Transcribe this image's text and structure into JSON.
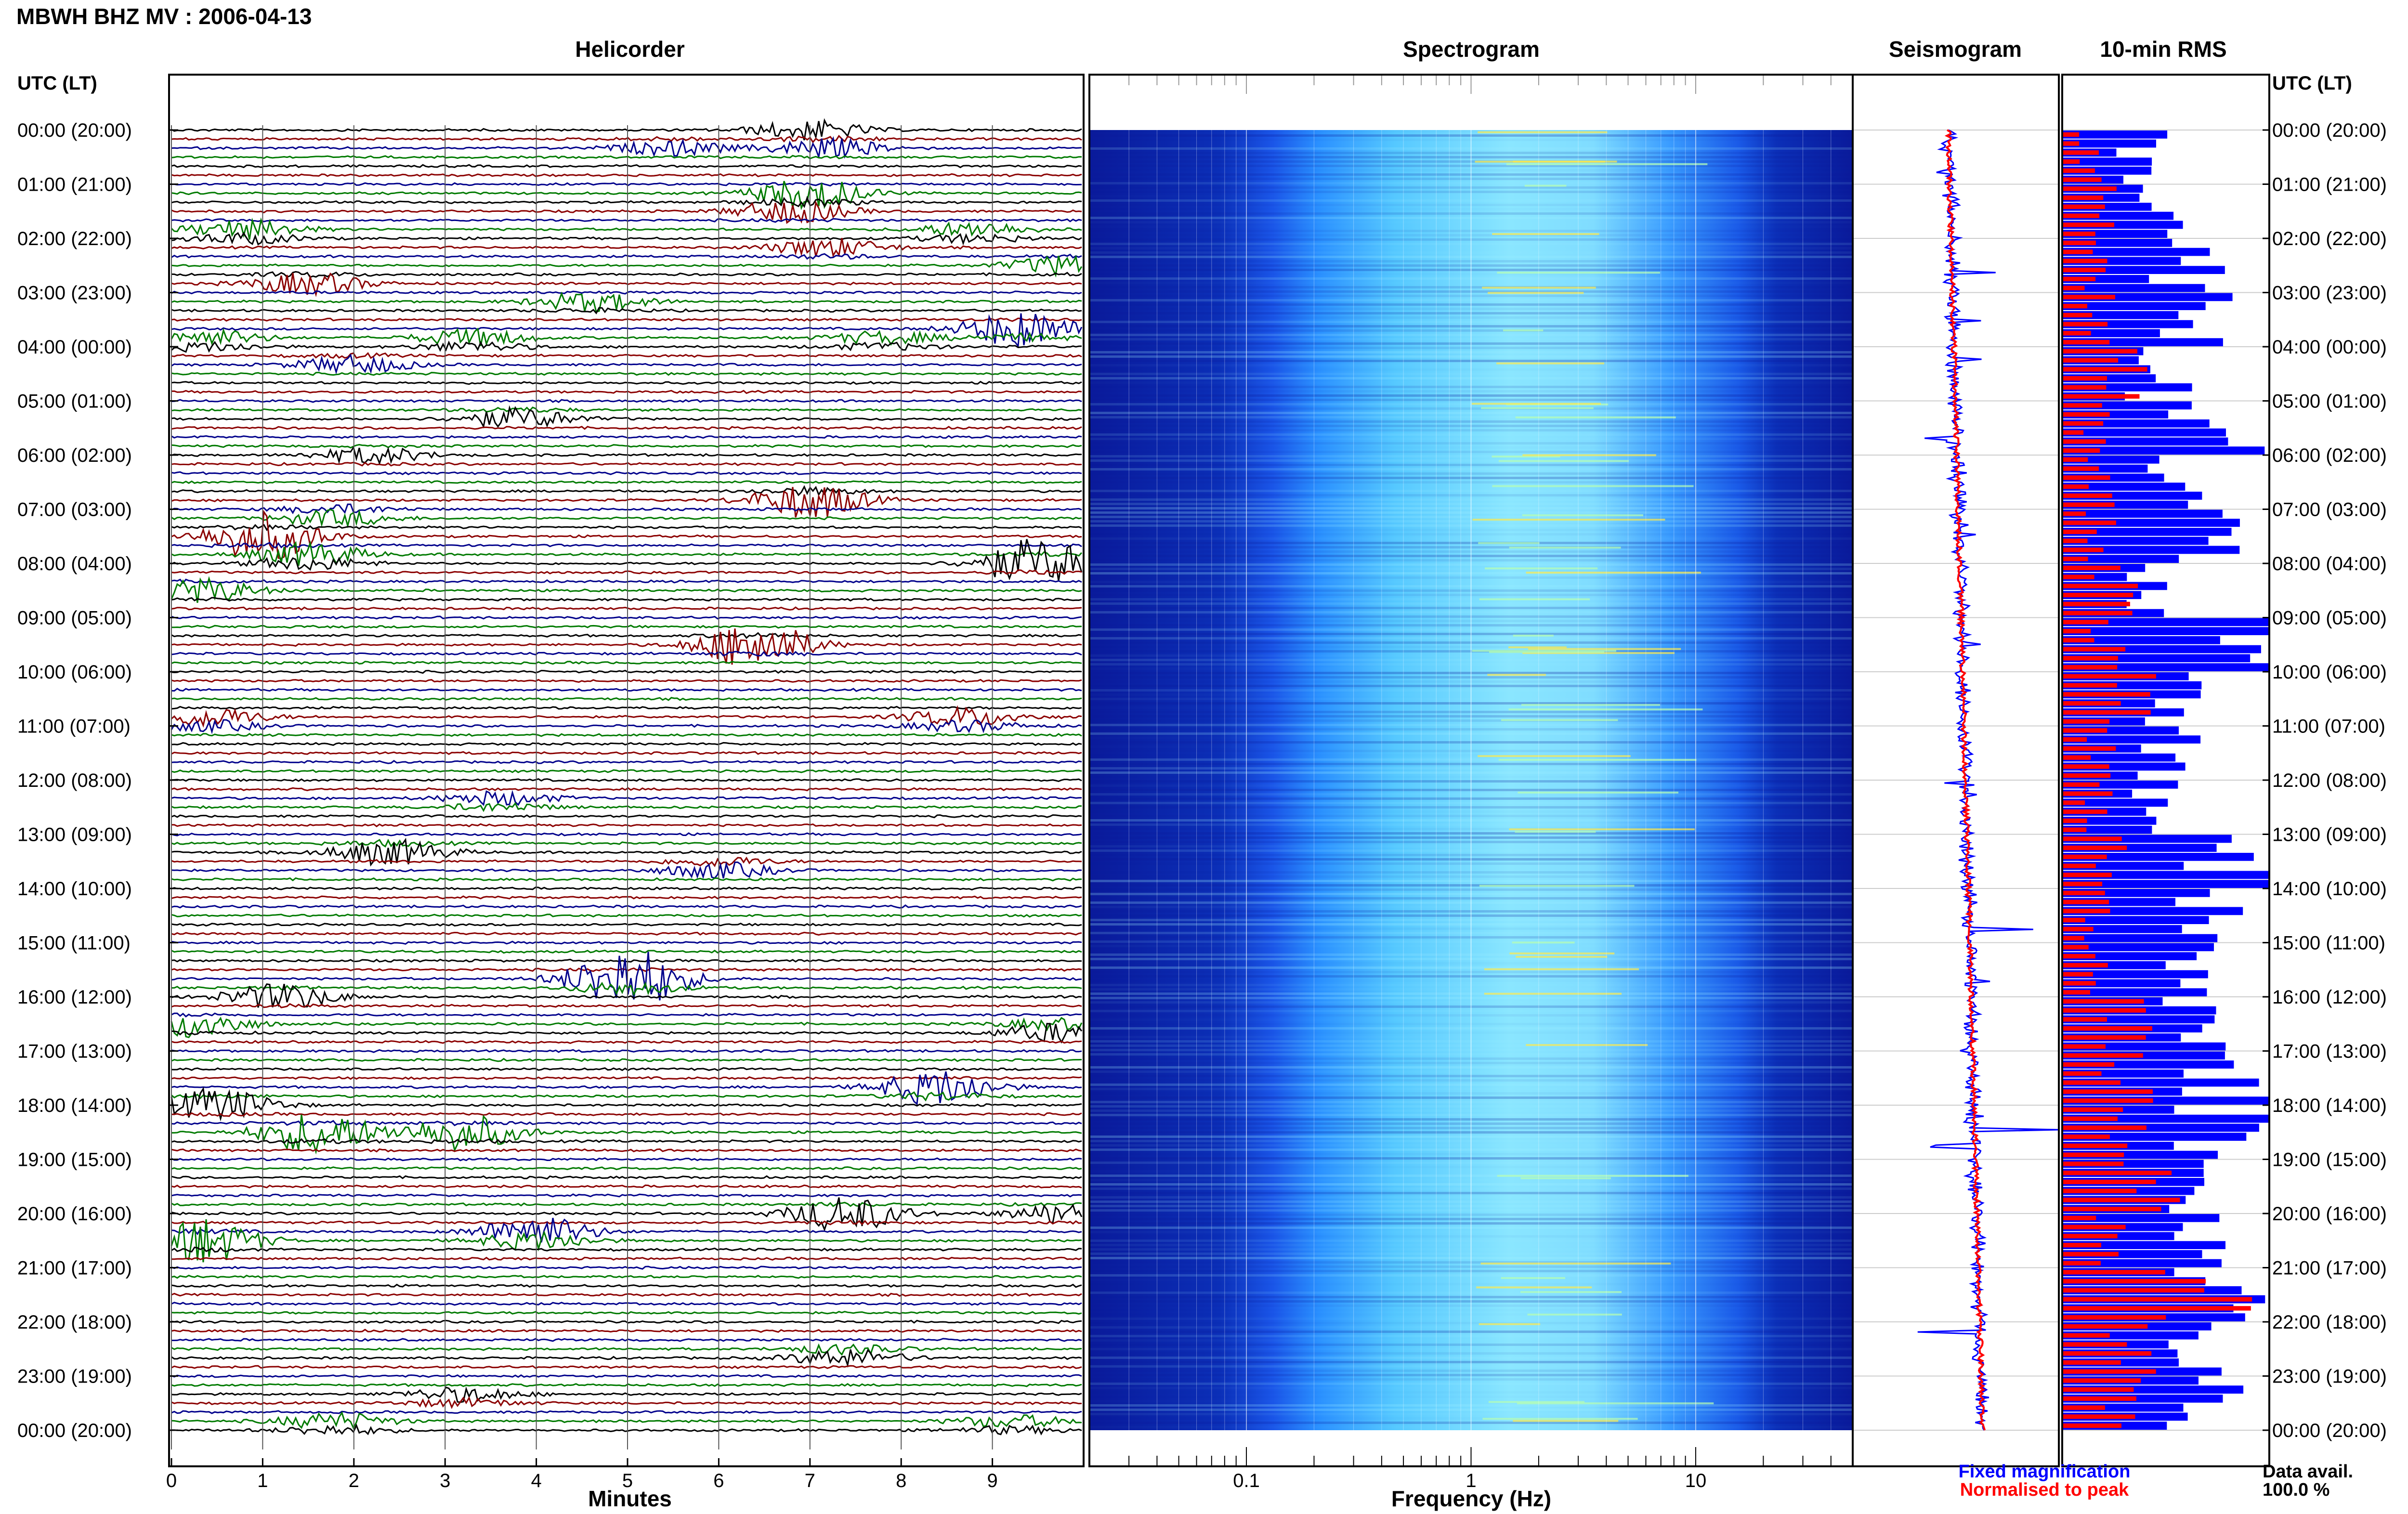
{
  "header": {
    "title": "MBWH BHZ MV : 2006-04-13"
  },
  "panels": {
    "helicorder": "Helicorder",
    "spectrogram": "Spectrogram",
    "seismogram": "Seismogram",
    "rms": "10-min RMS"
  },
  "axis_headers": {
    "left": "UTC (LT)",
    "right": "UTC (LT)"
  },
  "legend": {
    "fixed": "Fixed magnification",
    "normalised": "Normalised to peak",
    "fixed_color": "#0000ff",
    "normalised_color": "#ff0000"
  },
  "data_availability": {
    "label": "Data avail.",
    "value": "100.0 %"
  },
  "colors": {
    "trace_cycle": [
      "#000000",
      "#8b0000",
      "#00008b",
      "#007a00"
    ],
    "rms_fixed": "#0000ff",
    "rms_normalised": "#ff0000",
    "spectrogram_low": "#0a1a9a",
    "spectrogram_mid": "#1e78ff",
    "spectrogram_high": "#7fe0ff"
  },
  "chart_data": [
    {
      "type": "line",
      "name": "helicorder",
      "title": "Helicorder",
      "xlabel": "Minutes",
      "x_ticks": [
        "0",
        "1",
        "2",
        "3",
        "4",
        "5",
        "6",
        "7",
        "8",
        "9"
      ],
      "xlim": [
        0,
        10
      ],
      "y_tick_labels": [
        "00:00 (20:00)",
        "01:00 (21:00)",
        "02:00 (22:00)",
        "03:00 (23:00)",
        "04:00 (00:00)",
        "05:00 (01:00)",
        "06:00 (02:00)",
        "07:00 (03:00)",
        "08:00 (04:00)",
        "09:00 (05:00)",
        "10:00 (06:00)",
        "11:00 (07:00)",
        "12:00 (08:00)",
        "13:00 (09:00)",
        "14:00 (10:00)",
        "15:00 (11:00)",
        "16:00 (12:00)",
        "17:00 (13:00)",
        "18:00 (14:00)",
        "19:00 (15:00)",
        "20:00 (16:00)",
        "21:00 (17:00)",
        "22:00 (18:00)",
        "23:00 (19:00)",
        "00:00 (20:00)"
      ],
      "rows_per_hour": 6,
      "events": [
        {
          "hour": 0.0,
          "minute": 7.0,
          "amp": 1.2
        },
        {
          "hour": 0.3,
          "minute": 5.5,
          "amp": 1.0
        },
        {
          "hour": 0.3,
          "minute": 7.2,
          "amp": 1.3
        },
        {
          "hour": 1.2,
          "minute": 7.0,
          "amp": 2.2
        },
        {
          "hour": 1.5,
          "minute": 6.8,
          "amp": 1.4
        },
        {
          "hour": 1.9,
          "minute": 0.8,
          "amp": 1.8
        },
        {
          "hour": 1.9,
          "minute": 8.8,
          "amp": 1.4
        },
        {
          "hour": 2.2,
          "minute": 7.2,
          "amp": 1.3
        },
        {
          "hour": 2.5,
          "minute": 9.8,
          "amp": 1.2
        },
        {
          "hour": 2.8,
          "minute": 1.5,
          "amp": 1.5
        },
        {
          "hour": 3.2,
          "minute": 4.6,
          "amp": 1.3
        },
        {
          "hour": 3.7,
          "minute": 9.3,
          "amp": 2.5
        },
        {
          "hour": 3.9,
          "minute": 0.4,
          "amp": 1.5
        },
        {
          "hour": 3.9,
          "minute": 3.3,
          "amp": 1.6
        },
        {
          "hour": 3.9,
          "minute": 7.8,
          "amp": 1.2
        },
        {
          "hour": 4.3,
          "minute": 2.0,
          "amp": 1.2
        },
        {
          "hour": 5.3,
          "minute": 3.8,
          "amp": 1.4
        },
        {
          "hour": 6.0,
          "minute": 2.2,
          "amp": 1.0
        },
        {
          "hour": 6.8,
          "minute": 7.0,
          "amp": 2.5
        },
        {
          "hour": 7.1,
          "minute": 1.8,
          "amp": 1.5
        },
        {
          "hour": 7.5,
          "minute": 1.0,
          "amp": 3.0
        },
        {
          "hour": 7.9,
          "minute": 1.5,
          "amp": 2.2
        },
        {
          "hour": 8.0,
          "minute": 9.5,
          "amp": 3.0
        },
        {
          "hour": 8.5,
          "minute": 0.3,
          "amp": 1.5
        },
        {
          "hour": 9.5,
          "minute": 6.4,
          "amp": 3.0
        },
        {
          "hour": 10.9,
          "minute": 0.4,
          "amp": 1.8
        },
        {
          "hour": 10.9,
          "minute": 8.7,
          "amp": 1.8
        },
        {
          "hour": 12.4,
          "minute": 3.6,
          "amp": 1.3
        },
        {
          "hour": 13.3,
          "minute": 2.4,
          "amp": 1.8
        },
        {
          "hour": 13.6,
          "minute": 6.0,
          "amp": 1.5
        },
        {
          "hour": 15.7,
          "minute": 5.0,
          "amp": 4.5
        },
        {
          "hour": 16.0,
          "minute": 1.2,
          "amp": 1.6
        },
        {
          "hour": 16.5,
          "minute": 0.2,
          "amp": 1.8
        },
        {
          "hour": 16.6,
          "minute": 9.7,
          "amp": 1.8
        },
        {
          "hour": 17.7,
          "minute": 8.4,
          "amp": 2.5
        },
        {
          "hour": 18.0,
          "minute": 0.5,
          "amp": 2.0
        },
        {
          "hour": 18.5,
          "minute": 1.6,
          "amp": 2.6
        },
        {
          "hour": 18.5,
          "minute": 3.2,
          "amp": 2.2
        },
        {
          "hour": 20.0,
          "minute": 7.4,
          "amp": 2.2
        },
        {
          "hour": 20.0,
          "minute": 9.8,
          "amp": 1.2
        },
        {
          "hour": 20.4,
          "minute": 4.0,
          "amp": 3.0
        },
        {
          "hour": 20.5,
          "minute": 0.3,
          "amp": 3.0
        },
        {
          "hour": 22.6,
          "minute": 7.4,
          "amp": 1.6
        },
        {
          "hour": 23.4,
          "minute": 3.2,
          "amp": 1.4
        },
        {
          "hour": 23.9,
          "minute": 1.8,
          "amp": 1.6
        },
        {
          "hour": 23.9,
          "minute": 9.2,
          "amp": 1.2
        }
      ]
    },
    {
      "type": "heatmap",
      "name": "spectrogram",
      "title": "Spectrogram",
      "xlabel": "Frequency (Hz)",
      "x_scale": "log",
      "xlim": [
        0.02,
        50
      ],
      "x_ticks": [
        0.1,
        1,
        10
      ],
      "x_tick_labels": [
        "0.1",
        "1",
        "10"
      ],
      "peak_band_hz": [
        1,
        8
      ],
      "ylim_hours": [
        0,
        24
      ]
    },
    {
      "type": "line",
      "name": "seismogram",
      "title": "Seismogram",
      "series": [
        {
          "name": "Fixed magnification",
          "color": "#0000ff"
        },
        {
          "name": "Normalised to peak",
          "color": "#ff0000"
        }
      ]
    },
    {
      "type": "bar",
      "name": "rms",
      "title": "10-min RMS",
      "orientation": "horizontal",
      "ylim_hours": [
        0,
        24
      ],
      "series": [
        {
          "name": "Fixed magnification",
          "color": "#0000ff"
        },
        {
          "name": "Normalised to peak",
          "color": "#ff0000"
        }
      ],
      "hourly_fixed": [
        0.45,
        0.6,
        0.72,
        0.85,
        0.55,
        0.9,
        0.65,
        0.8,
        0.5,
        1.0,
        0.7,
        0.6,
        0.55,
        0.95,
        0.85,
        0.75,
        0.75,
        1.0,
        0.95,
        0.7,
        0.75,
        0.95,
        0.75,
        0.8
      ],
      "hourly_normalised": [
        0.15,
        0.25,
        0.2,
        0.22,
        0.35,
        0.18,
        0.2,
        0.22,
        0.3,
        0.25,
        0.35,
        0.22,
        0.2,
        0.25,
        0.2,
        0.2,
        0.4,
        0.35,
        0.45,
        0.45,
        0.3,
        0.8,
        0.35,
        0.3
      ]
    }
  ]
}
